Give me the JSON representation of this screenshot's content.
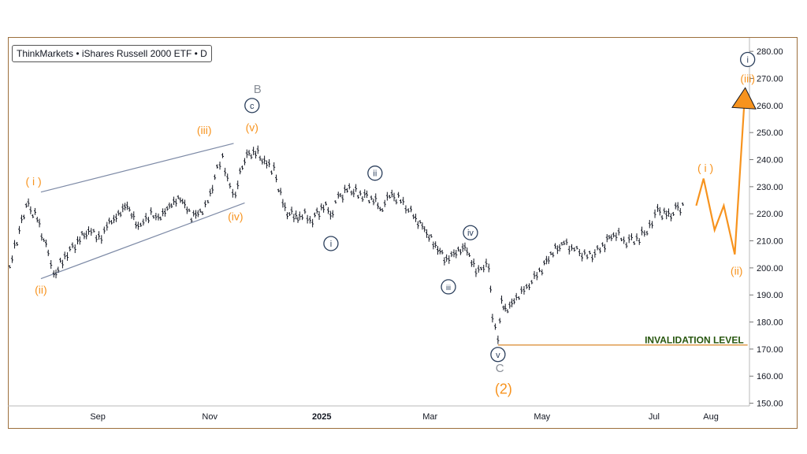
{
  "header": {
    "title": "ThinkMarkets • iShares Russell 2000 ETF • D"
  },
  "chart_data": {
    "type": "line",
    "title": "ThinkMarkets • iShares Russell 2000 ETF • D",
    "xlabel": "",
    "ylabel": "",
    "ylim": [
      149,
      285
    ],
    "y_ticks": [
      "150.00",
      "160.00",
      "170.00",
      "180.00",
      "190.00",
      "200.00",
      "210.00",
      "220.00",
      "230.00",
      "240.00",
      "250.00",
      "260.00",
      "270.00",
      "280.00"
    ],
    "x_ticks": [
      {
        "label": "Sep",
        "date": "2024-09-01",
        "bold": false
      },
      {
        "label": "Nov",
        "date": "2024-11-01",
        "bold": false
      },
      {
        "label": "2025",
        "date": "2025-01-01",
        "bold": true
      },
      {
        "label": "Mar",
        "date": "2025-03-01",
        "bold": false
      },
      {
        "label": "May",
        "date": "2025-05-01",
        "bold": false
      },
      {
        "label": "Jul",
        "date": "2025-07-01",
        "bold": false
      },
      {
        "label": "Aug",
        "date": "2025-08-01",
        "bold": false
      }
    ],
    "x_range": [
      "2024-07-14",
      "2025-08-22"
    ],
    "grid": false,
    "colors": {
      "bars": "#131722",
      "orange": "#f7931e",
      "navy": "#2b3f5c",
      "gray": "#8a8f98",
      "channel": "#7d8aa6",
      "invalidation": "#27560e",
      "border": "#9c6f3c"
    },
    "series": [
      {
        "name": "",
        "x": [
          "2024-07-15",
          "2024-07-19",
          "2024-07-24",
          "2024-07-30",
          "2024-08-05",
          "2024-08-08",
          "2024-08-14",
          "2024-08-21",
          "2024-08-27",
          "2024-09-03",
          "2024-09-06",
          "2024-09-11",
          "2024-09-17",
          "2024-09-23",
          "2024-09-30",
          "2024-10-04",
          "2024-10-10",
          "2024-10-16",
          "2024-10-22",
          "2024-10-28",
          "2024-10-31",
          "2024-11-05",
          "2024-11-08",
          "2024-11-12",
          "2024-11-15",
          "2024-11-20",
          "2024-11-26",
          "2024-12-02",
          "2024-12-06",
          "2024-12-12",
          "2024-12-18",
          "2024-12-20",
          "2024-12-27",
          "2025-01-02",
          "2025-01-07",
          "2025-01-10",
          "2025-01-16",
          "2025-01-22",
          "2025-01-28",
          "2025-02-03",
          "2025-02-07",
          "2025-02-13",
          "2025-02-20",
          "2025-02-26",
          "2025-03-04",
          "2025-03-10",
          "2025-03-14",
          "2025-03-20",
          "2025-03-26",
          "2025-04-02",
          "2025-04-04",
          "2025-04-07",
          "2025-04-09",
          "2025-04-11",
          "2025-04-17",
          "2025-04-24",
          "2025-05-01",
          "2025-05-07",
          "2025-05-13",
          "2025-05-20",
          "2025-05-27",
          "2025-06-03",
          "2025-06-09",
          "2025-06-16",
          "2025-06-23",
          "2025-06-30",
          "2025-07-03",
          "2025-07-09",
          "2025-07-14",
          "2025-07-18"
        ],
        "y": [
          201,
          210,
          224,
          218,
          205,
          197,
          204,
          210,
          214,
          211,
          216,
          219,
          223,
          215,
          220,
          218,
          223,
          226,
          219,
          221,
          224,
          236,
          240,
          230,
          228,
          241,
          243,
          238,
          236,
          221,
          219,
          220,
          218,
          223,
          220,
          226,
          229,
          227,
          226,
          222,
          227,
          225,
          219,
          214,
          208,
          203,
          205,
          208,
          199,
          201,
          182,
          173,
          187,
          184,
          189,
          194,
          200,
          206,
          209,
          206,
          204,
          208,
          213,
          210,
          211,
          216,
          221,
          219,
          222,
          223
        ]
      }
    ],
    "projection": {
      "name": "",
      "x": [
        "2025-07-24",
        "2025-07-28",
        "2025-08-03",
        "2025-08-08",
        "2025-08-14",
        "2025-08-19"
      ],
      "y": [
        223,
        233,
        214,
        223,
        205,
        259
      ]
    },
    "channel": [
      {
        "x": [
          "2024-08-01",
          "2024-11-14"
        ],
        "y": [
          228,
          246
        ]
      },
      {
        "x": [
          "2024-08-01",
          "2024-11-20"
        ],
        "y": [
          196,
          224
        ]
      }
    ],
    "invalidation_level": {
      "label": "INVALIDATION LEVEL",
      "value": 171.5,
      "from": "2025-04-07",
      "to": "2025-08-21"
    },
    "wave_labels": [
      {
        "text": "( i )",
        "x": "2024-07-28",
        "y": 232,
        "color": "orange",
        "style": "paren"
      },
      {
        "text": "(ii)",
        "x": "2024-08-01",
        "y": 192,
        "color": "orange",
        "style": "paren"
      },
      {
        "text": "(iii)",
        "x": "2024-10-29",
        "y": 251,
        "color": "orange",
        "style": "paren"
      },
      {
        "text": "(iv)",
        "x": "2024-11-15",
        "y": 219,
        "color": "orange",
        "style": "paren"
      },
      {
        "text": "(v)",
        "x": "2024-11-24",
        "y": 252,
        "color": "orange",
        "style": "paren"
      },
      {
        "text": "ⓒ",
        "x": "2024-11-24",
        "y": 260,
        "color": "navy",
        "style": "circle"
      },
      {
        "text": "B",
        "x": "2024-11-27",
        "y": 266,
        "color": "gray",
        "style": "plain"
      },
      {
        "text": "ⓘ",
        "x": "2025-01-06",
        "y": 209,
        "color": "navy",
        "style": "circle"
      },
      {
        "text": "ⓘⓘ",
        "x": "2025-01-30",
        "y": 235,
        "color": "navy",
        "style": "circle"
      },
      {
        "text": "ⓘⓘⓘ",
        "x": "2025-03-11",
        "y": 193,
        "color": "navy",
        "style": "circle"
      },
      {
        "text": "ⓘⓥ",
        "x": "2025-03-23",
        "y": 213,
        "color": "navy",
        "style": "circle"
      },
      {
        "text": "ⓥ",
        "x": "2025-04-07",
        "y": 168,
        "color": "navy",
        "style": "circle"
      },
      {
        "text": "C",
        "x": "2025-04-08",
        "y": 163,
        "color": "gray",
        "style": "plain"
      },
      {
        "text": "(2)",
        "x": "2025-04-10",
        "y": 155,
        "color": "orange",
        "style": "paren-large"
      },
      {
        "text": "( i )",
        "x": "2025-07-29",
        "y": 237,
        "color": "orange",
        "style": "paren"
      },
      {
        "text": "(ii)",
        "x": "2025-08-15",
        "y": 199,
        "color": "orange",
        "style": "paren"
      },
      {
        "text": "(iii)",
        "x": "2025-08-21",
        "y": 270,
        "color": "orange",
        "style": "paren"
      },
      {
        "text": "ⓘ",
        "x": "2025-08-21",
        "y": 277,
        "color": "navy",
        "style": "circle"
      }
    ]
  }
}
